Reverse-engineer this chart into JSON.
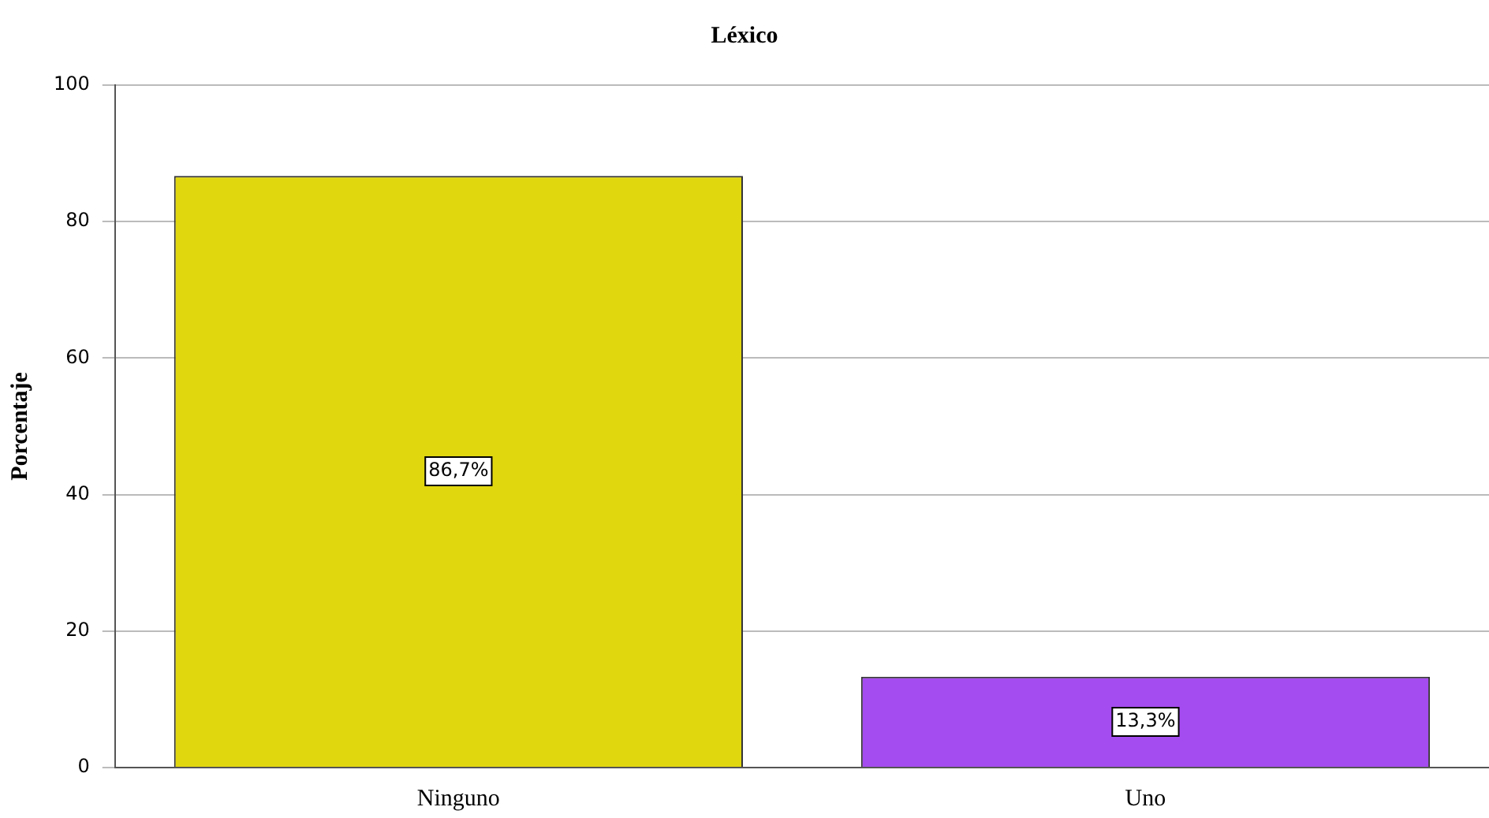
{
  "chart_data": {
    "type": "bar",
    "title": "Léxico",
    "ylabel": "Porcentaje",
    "categories": [
      "Ninguno",
      "Uno"
    ],
    "values": [
      86.7,
      13.3
    ],
    "colors": [
      "#e1d70f",
      "#a54cf0"
    ],
    "value_labels": [
      "86,7%",
      "13,3%"
    ],
    "ylim": [
      0,
      100
    ],
    "yticks": [
      0,
      20,
      40,
      60,
      80,
      100
    ],
    "grid": "y",
    "legend": false
  }
}
